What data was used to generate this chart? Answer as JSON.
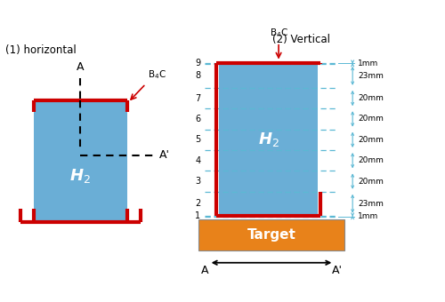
{
  "title1": "(1) horizontal",
  "title2": "(2) Vertical",
  "h2_color": "#6aaed6",
  "red_color": "#cc0000",
  "orange_color": "#e8821a",
  "blue_dash_color": "#5bb8d4",
  "h2_label": "H$_2$",
  "target_label": "Target",
  "b4c_label": "B$_4$C",
  "regions": [
    "1",
    "2",
    "3",
    "4",
    "5",
    "6",
    "7",
    "8",
    "9"
  ],
  "region_widths": [
    "1mm",
    "23mm",
    "20mm",
    "20mm",
    "20mm",
    "20mm",
    "20mm",
    "23mm",
    "1mm"
  ],
  "mm_heights": [
    1,
    23,
    20,
    20,
    20,
    20,
    20,
    23,
    1
  ],
  "background": "#ffffff"
}
